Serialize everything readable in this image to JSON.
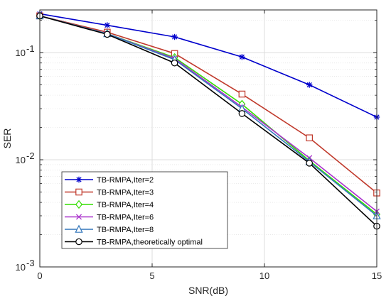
{
  "chart_data": {
    "type": "line",
    "xlabel": "SNR(dB)",
    "ylabel": "SER",
    "xlim": [
      0,
      15
    ],
    "ylim": [
      0.001,
      0.25
    ],
    "yscale": "log",
    "grid": true,
    "legend_position": "bottom-left",
    "x_ticks": [
      0,
      5,
      10,
      15
    ],
    "y_ticks": [
      {
        "value": 0.001,
        "base": "10",
        "exp": "-3"
      },
      {
        "value": 0.01,
        "base": "10",
        "exp": "-2"
      },
      {
        "value": 0.1,
        "base": "10",
        "exp": "-1"
      }
    ],
    "x": [
      0,
      3,
      6,
      9,
      12,
      15
    ],
    "series": [
      {
        "name": "TB-RMPA,Iter=2",
        "color": "#0000cc",
        "marker": "star",
        "values": [
          0.23,
          0.18,
          0.14,
          0.091,
          0.05,
          0.025
        ]
      },
      {
        "name": "TB-RMPA,Iter=3",
        "color": "#c0392b",
        "marker": "square",
        "values": [
          0.22,
          0.155,
          0.098,
          0.041,
          0.016,
          0.0049
        ]
      },
      {
        "name": "TB-RMPA,Iter=4",
        "color": "#33dd00",
        "marker": "diamond",
        "values": [
          0.22,
          0.15,
          0.09,
          0.033,
          0.0098,
          0.0031
        ]
      },
      {
        "name": "TB-RMPA,Iter=6",
        "color": "#aa33cc",
        "marker": "x",
        "values": [
          0.22,
          0.15,
          0.088,
          0.031,
          0.0104,
          0.0033
        ]
      },
      {
        "name": "TB-RMPA,Iter=8",
        "color": "#3377bb",
        "marker": "triangle",
        "values": [
          0.22,
          0.15,
          0.086,
          0.03,
          0.0096,
          0.003
        ]
      },
      {
        "name": "TB-RMPA,theoretically optimal",
        "color": "#000000",
        "marker": "circle",
        "values": [
          0.22,
          0.148,
          0.08,
          0.027,
          0.0093,
          0.0024
        ]
      }
    ]
  }
}
